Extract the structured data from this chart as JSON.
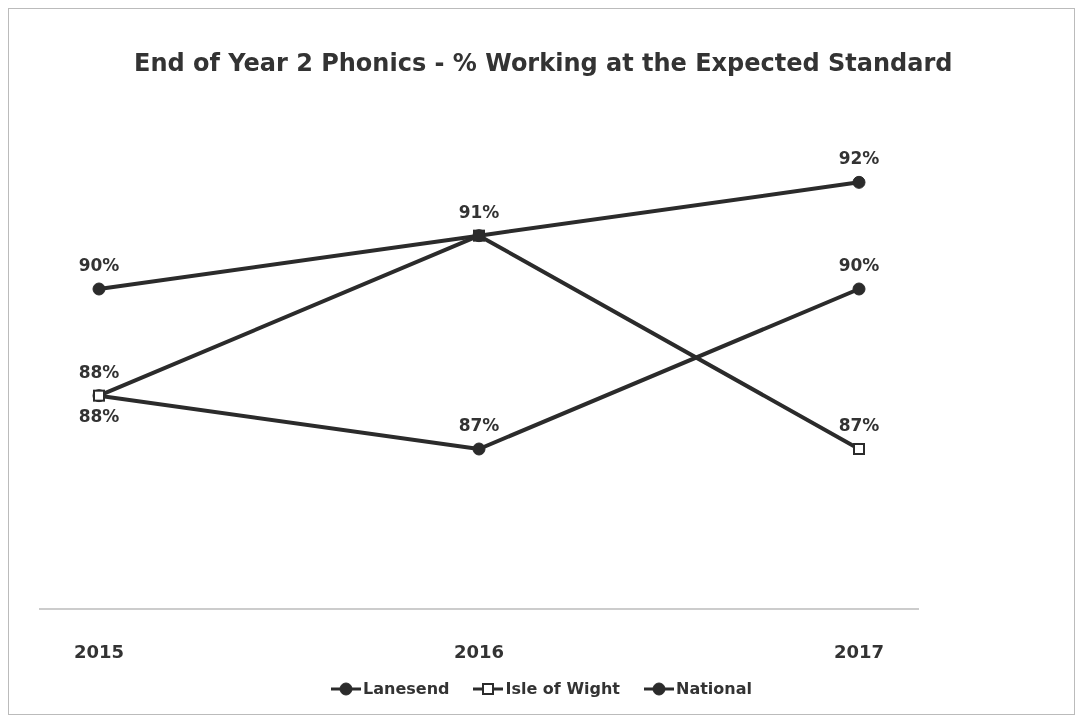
{
  "chart_data": {
    "type": "line",
    "title": "End of Year 2 Phonics - % Working at the Expected Standard",
    "categories": [
      "2015",
      "2016",
      "2017"
    ],
    "series": [
      {
        "name": "Lanesend",
        "color": "#2b2b2b",
        "marker": "circle",
        "values": [
          88,
          87,
          90
        ],
        "value_labels": [
          "88%",
          "87%",
          "90%"
        ]
      },
      {
        "name": "Isle of Wight",
        "color": "#2b2b2b",
        "marker": "square",
        "values": [
          88,
          91,
          87
        ],
        "value_labels": [
          "88%",
          null,
          "87%"
        ]
      },
      {
        "name": "National",
        "color": "#2b2b2b",
        "marker": "circle",
        "values": [
          90,
          91,
          92
        ],
        "value_labels": [
          "90%",
          "91%",
          "92%"
        ]
      }
    ],
    "tick_labels": "x",
    "legend": "bottom",
    "grid": false,
    "line_style": "solid"
  }
}
